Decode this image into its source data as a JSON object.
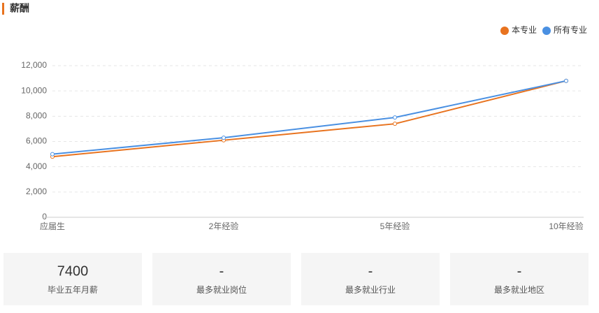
{
  "header": {
    "title": "薪酬"
  },
  "chart_data": {
    "type": "line",
    "categories": [
      "应届生",
      "2年经验",
      "5年经验",
      "10年经验"
    ],
    "series": [
      {
        "name": "本专业",
        "color": "#e8731f",
        "values": [
          4800,
          6100,
          7400,
          10800
        ]
      },
      {
        "name": "所有专业",
        "color": "#4a90e2",
        "values": [
          5000,
          6300,
          7900,
          10800
        ]
      }
    ],
    "ylim": [
      0,
      12000
    ],
    "yticks": [
      0,
      {
        "value": 2000,
        "label": "2,000"
      },
      {
        "value": 4000,
        "label": "4,000"
      },
      {
        "value": 6000,
        "label": "6,000"
      },
      {
        "value": 8000,
        "label": "8,000"
      },
      {
        "value": 10000,
        "label": "10,000"
      },
      {
        "value": 12000,
        "label": "12,000"
      }
    ],
    "grid": true,
    "legend": "top-right"
  },
  "cards": [
    {
      "value": 7400,
      "label": "毕业五年月薪"
    },
    {
      "value": "-",
      "label": "最多就业岗位"
    },
    {
      "value": "-",
      "label": "最多就业行业"
    },
    {
      "value": "-",
      "label": "最多就业地区"
    }
  ]
}
